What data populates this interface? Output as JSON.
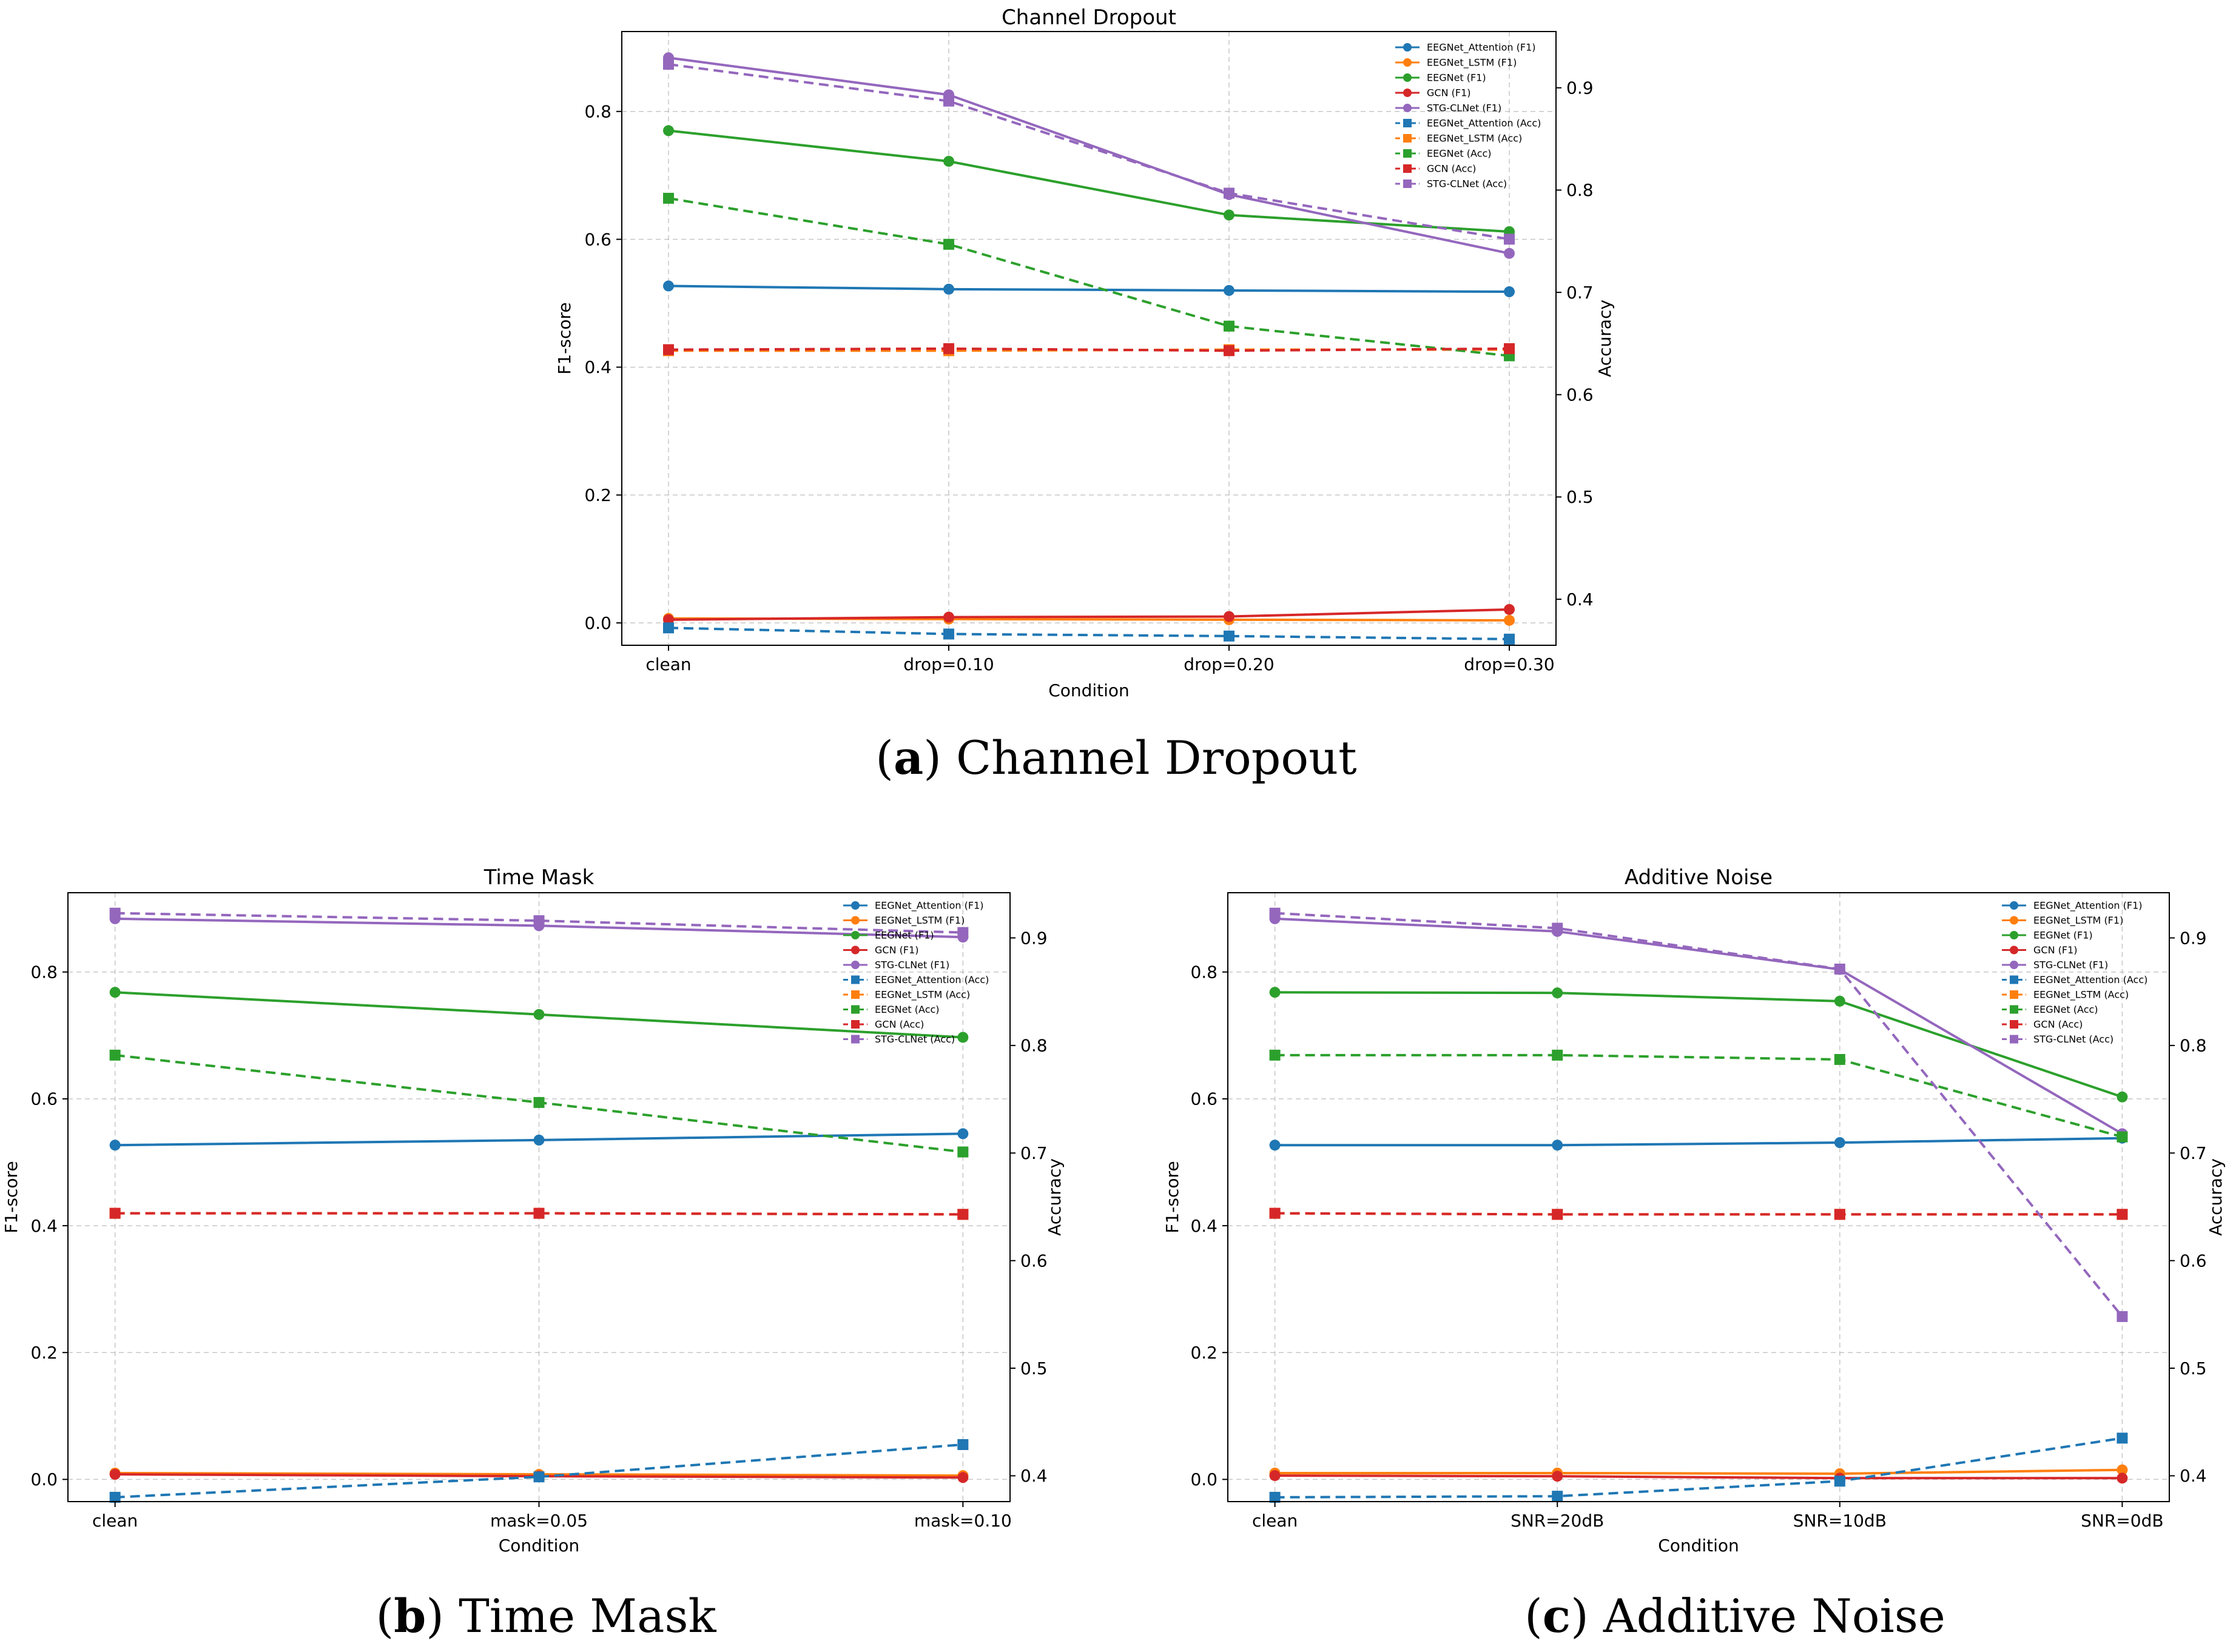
{
  "chart_data": [
    {
      "type": "line",
      "panel": "a",
      "title": "Channel Dropout",
      "xlabel": "Condition",
      "ylabel": "F1-score",
      "y2label": "Accuracy",
      "categories": [
        "clean",
        "drop=0.10",
        "drop=0.20",
        "drop=0.30"
      ],
      "ylim": [
        -0.035,
        0.925
      ],
      "yticks": [
        0.0,
        0.2,
        0.4,
        0.6,
        0.8
      ],
      "y2lim": [
        0.355,
        0.955
      ],
      "y2ticks": [
        0.4,
        0.5,
        0.6,
        0.7,
        0.8,
        0.9
      ],
      "legend_position": "upper-right",
      "grid": true,
      "series": [
        {
          "name": "EEGNet_Attention (F1)",
          "axis": "f1",
          "color": "#1f77b4",
          "values": [
            0.527,
            0.522,
            0.52,
            0.518
          ]
        },
        {
          "name": "EEGNet_LSTM (F1)",
          "axis": "f1",
          "color": "#ff7f0e",
          "values": [
            0.007,
            0.006,
            0.005,
            0.004
          ]
        },
        {
          "name": "EEGNet (F1)",
          "axis": "f1",
          "color": "#2ca02c",
          "values": [
            0.77,
            0.722,
            0.638,
            0.612
          ]
        },
        {
          "name": "GCN (F1)",
          "axis": "f1",
          "color": "#d62728",
          "values": [
            0.005,
            0.009,
            0.01,
            0.021
          ]
        },
        {
          "name": "STG-CLNet (F1)",
          "axis": "f1",
          "color": "#9467bd",
          "values": [
            0.884,
            0.826,
            0.67,
            0.578
          ]
        },
        {
          "name": "EEGNet_Attention (Acc)",
          "axis": "acc",
          "color": "#1f77b4",
          "values": [
            0.372,
            0.366,
            0.364,
            0.361
          ]
        },
        {
          "name": "EEGNet_LSTM (Acc)",
          "axis": "acc",
          "color": "#ff7f0e",
          "values": [
            0.643,
            0.643,
            0.644,
            0.644
          ]
        },
        {
          "name": "EEGNet (Acc)",
          "axis": "acc",
          "color": "#2ca02c",
          "values": [
            0.792,
            0.747,
            0.667,
            0.638
          ]
        },
        {
          "name": "GCN (Acc)",
          "axis": "acc",
          "color": "#d62728",
          "values": [
            0.644,
            0.645,
            0.643,
            0.645
          ]
        },
        {
          "name": "STG-CLNet (Acc)",
          "axis": "acc",
          "color": "#9467bd",
          "values": [
            0.923,
            0.887,
            0.797,
            0.752
          ]
        }
      ]
    },
    {
      "type": "line",
      "panel": "b",
      "title": "Time Mask",
      "xlabel": "Condition",
      "ylabel": "F1-score",
      "y2label": "Accuracy",
      "categories": [
        "clean",
        "mask=0.05",
        "mask=0.10"
      ],
      "ylim": [
        -0.035,
        0.925
      ],
      "yticks": [
        0.0,
        0.2,
        0.4,
        0.6,
        0.8
      ],
      "y2lim": [
        0.376,
        0.942
      ],
      "y2ticks": [
        0.4,
        0.5,
        0.6,
        0.7,
        0.8,
        0.9
      ],
      "legend_position": "upper-right",
      "grid": true,
      "series": [
        {
          "name": "EEGNet_Attention (F1)",
          "axis": "f1",
          "color": "#1f77b4",
          "values": [
            0.527,
            0.535,
            0.545
          ]
        },
        {
          "name": "EEGNet_LSTM (F1)",
          "axis": "f1",
          "color": "#ff7f0e",
          "values": [
            0.01,
            0.008,
            0.006
          ]
        },
        {
          "name": "EEGNet (F1)",
          "axis": "f1",
          "color": "#2ca02c",
          "values": [
            0.768,
            0.733,
            0.697
          ]
        },
        {
          "name": "GCN (F1)",
          "axis": "f1",
          "color": "#d62728",
          "values": [
            0.008,
            0.005,
            0.003
          ]
        },
        {
          "name": "STG-CLNet (F1)",
          "axis": "f1",
          "color": "#9467bd",
          "values": [
            0.884,
            0.873,
            0.855
          ]
        },
        {
          "name": "EEGNet_Attention (Acc)",
          "axis": "acc",
          "color": "#1f77b4",
          "values": [
            0.38,
            0.399,
            0.429
          ]
        },
        {
          "name": "EEGNet_LSTM (Acc)",
          "axis": "acc",
          "color": "#ff7f0e",
          "values": [
            0.644,
            0.644,
            0.643
          ]
        },
        {
          "name": "EEGNet (Acc)",
          "axis": "acc",
          "color": "#2ca02c",
          "values": [
            0.791,
            0.747,
            0.701
          ]
        },
        {
          "name": "GCN (Acc)",
          "axis": "acc",
          "color": "#d62728",
          "values": [
            0.644,
            0.644,
            0.643
          ]
        },
        {
          "name": "STG-CLNet (Acc)",
          "axis": "acc",
          "color": "#9467bd",
          "values": [
            0.923,
            0.916,
            0.905
          ]
        }
      ]
    },
    {
      "type": "line",
      "panel": "c",
      "title": "Additive Noise",
      "xlabel": "Condition",
      "ylabel": "F1-score",
      "y2label": "Accuracy",
      "categories": [
        "clean",
        "SNR=20dB",
        "SNR=10dB",
        "SNR=0dB"
      ],
      "ylim": [
        -0.035,
        0.925
      ],
      "yticks": [
        0.0,
        0.2,
        0.4,
        0.6,
        0.8
      ],
      "y2lim": [
        0.376,
        0.942
      ],
      "y2ticks": [
        0.4,
        0.5,
        0.6,
        0.7,
        0.8,
        0.9
      ],
      "legend_position": "upper-right",
      "grid": true,
      "series": [
        {
          "name": "EEGNet_Attention (F1)",
          "axis": "f1",
          "color": "#1f77b4",
          "values": [
            0.527,
            0.527,
            0.531,
            0.538
          ]
        },
        {
          "name": "EEGNet_LSTM (F1)",
          "axis": "f1",
          "color": "#ff7f0e",
          "values": [
            0.01,
            0.01,
            0.009,
            0.015
          ]
        },
        {
          "name": "EEGNet (F1)",
          "axis": "f1",
          "color": "#2ca02c",
          "values": [
            0.768,
            0.767,
            0.754,
            0.603
          ]
        },
        {
          "name": "GCN (F1)",
          "axis": "f1",
          "color": "#d62728",
          "values": [
            0.006,
            0.005,
            0.002,
            0.002
          ]
        },
        {
          "name": "STG-CLNet (F1)",
          "axis": "f1",
          "color": "#9467bd",
          "values": [
            0.884,
            0.864,
            0.804,
            0.545
          ]
        },
        {
          "name": "EEGNet_Attention (Acc)",
          "axis": "acc",
          "color": "#1f77b4",
          "values": [
            0.38,
            0.381,
            0.395,
            0.435
          ]
        },
        {
          "name": "EEGNet_LSTM (Acc)",
          "axis": "acc",
          "color": "#ff7f0e",
          "values": [
            0.644,
            0.643,
            0.643,
            0.643
          ]
        },
        {
          "name": "EEGNet (Acc)",
          "axis": "acc",
          "color": "#2ca02c",
          "values": [
            0.791,
            0.791,
            0.787,
            0.715
          ]
        },
        {
          "name": "GCN (Acc)",
          "axis": "acc",
          "color": "#d62728",
          "values": [
            0.644,
            0.643,
            0.643,
            0.643
          ]
        },
        {
          "name": "STG-CLNet (Acc)",
          "axis": "acc",
          "color": "#9467bd",
          "values": [
            0.923,
            0.909,
            0.871,
            0.548
          ]
        }
      ]
    }
  ],
  "captions": {
    "a": {
      "letter": "a",
      "text": "Channel Dropout"
    },
    "b": {
      "letter": "b",
      "text": "Time Mask"
    },
    "c": {
      "letter": "c",
      "text": "Additive Noise"
    }
  }
}
